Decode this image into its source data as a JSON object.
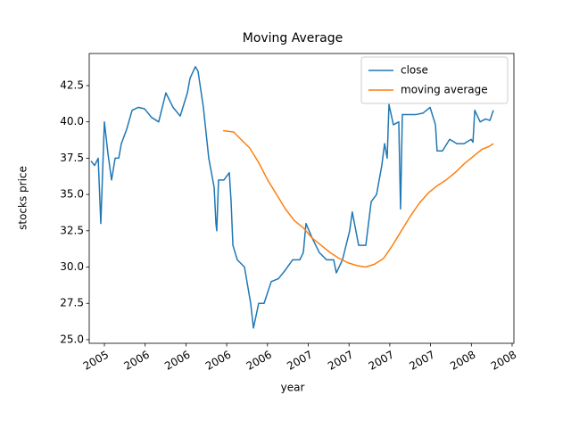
{
  "chart_data": {
    "type": "line",
    "title": "Moving Average",
    "x_label": "year",
    "y_label": "stocks price",
    "xlim": [
      2005.657,
      2008.261
    ],
    "ylim": [
      24.75,
      44.71
    ],
    "xticks": [
      {
        "value": 2005.75,
        "label": "2005"
      },
      {
        "value": 2006.0,
        "label": "2006"
      },
      {
        "value": 2006.25,
        "label": "2006"
      },
      {
        "value": 2006.5,
        "label": "2006"
      },
      {
        "value": 2006.75,
        "label": "2006"
      },
      {
        "value": 2007.0,
        "label": "2007"
      },
      {
        "value": 2007.25,
        "label": "2007"
      },
      {
        "value": 2007.5,
        "label": "2007"
      },
      {
        "value": 2007.75,
        "label": "2007"
      },
      {
        "value": 2008.0,
        "label": "2008"
      },
      {
        "value": 2008.25,
        "label": "2008"
      }
    ],
    "yticks": [
      {
        "value": 25,
        "label": "25.0"
      },
      27.5,
      {
        "value": 30,
        "label": "30.0"
      },
      32.5,
      {
        "value": 35,
        "label": "35.0"
      },
      37.5,
      {
        "value": 40,
        "label": "40.0"
      },
      42.5
    ],
    "legend": "upper right",
    "grid": false,
    "series": [
      {
        "name": "close",
        "color": "#1f77b4",
        "x": [
          2005.668,
          2005.69,
          2005.712,
          2005.728,
          2005.75,
          2005.772,
          2005.794,
          2005.816,
          2005.838,
          2005.854,
          2005.887,
          2005.92,
          2005.958,
          2005.996,
          2006.04,
          2006.083,
          2006.127,
          2006.171,
          2006.215,
          2006.259,
          2006.275,
          2006.308,
          2006.324,
          2006.357,
          2006.39,
          2006.423,
          2006.434,
          2006.439,
          2006.45,
          2006.483,
          2006.516,
          2006.527,
          2006.538,
          2006.565,
          2006.609,
          2006.647,
          2006.664,
          2006.696,
          2006.729,
          2006.773,
          2006.817,
          2006.86,
          2006.904,
          2006.948,
          2006.97,
          2006.986,
          2007.024,
          2007.068,
          2007.112,
          2007.156,
          2007.172,
          2007.21,
          2007.254,
          2007.27,
          2007.309,
          2007.353,
          2007.386,
          2007.419,
          2007.451,
          2007.468,
          2007.484,
          2007.495,
          2007.522,
          2007.555,
          2007.566,
          2007.577,
          2007.615,
          2007.659,
          2007.703,
          2007.747,
          2007.78,
          2007.79,
          2007.823,
          2007.867,
          2007.911,
          2007.955,
          2007.999,
          2008.01,
          2008.021,
          2008.054,
          2008.087,
          2008.114,
          2008.135
        ],
        "values": [
          37.3,
          37.0,
          37.5,
          33.0,
          40.0,
          37.8,
          36.0,
          37.5,
          37.5,
          38.5,
          39.5,
          40.8,
          41.0,
          40.9,
          40.3,
          40.0,
          42.0,
          41.0,
          40.4,
          42.0,
          43.0,
          43.8,
          43.5,
          41.0,
          37.5,
          35.5,
          33.0,
          32.5,
          36.0,
          36.0,
          36.5,
          34.5,
          31.5,
          30.5,
          30.0,
          27.5,
          25.8,
          27.5,
          27.5,
          29.0,
          29.2,
          29.8,
          30.5,
          30.5,
          31.0,
          33.0,
          32.0,
          31.0,
          30.5,
          30.5,
          29.6,
          30.5,
          32.5,
          33.8,
          31.5,
          31.5,
          34.5,
          35.0,
          37.0,
          38.5,
          37.5,
          41.2,
          39.8,
          40.0,
          34.0,
          40.5,
          40.5,
          40.5,
          40.6,
          41.0,
          39.8,
          38.0,
          38.0,
          38.8,
          38.5,
          38.5,
          38.8,
          38.6,
          40.8,
          40.0,
          40.2,
          40.1,
          40.8
        ]
      },
      {
        "name": "moving average",
        "color": "#ff7f0e",
        "x": [
          2006.478,
          2006.543,
          2006.587,
          2006.641,
          2006.696,
          2006.751,
          2006.806,
          2006.86,
          2006.915,
          2006.97,
          2007.024,
          2007.079,
          2007.134,
          2007.189,
          2007.243,
          2007.298,
          2007.353,
          2007.407,
          2007.462,
          2007.517,
          2007.571,
          2007.626,
          2007.681,
          2007.736,
          2007.79,
          2007.845,
          2007.9,
          2007.955,
          2008.009,
          2008.064,
          2008.108,
          2008.135
        ],
        "values": [
          39.4,
          39.3,
          38.8,
          38.2,
          37.2,
          36.0,
          35.0,
          34.0,
          33.2,
          32.7,
          32.0,
          31.5,
          31.0,
          30.6,
          30.3,
          30.1,
          30.0,
          30.2,
          30.6,
          31.5,
          32.5,
          33.5,
          34.4,
          35.1,
          35.6,
          36.0,
          36.5,
          37.1,
          37.6,
          38.1,
          38.3,
          38.5
        ]
      }
    ]
  }
}
